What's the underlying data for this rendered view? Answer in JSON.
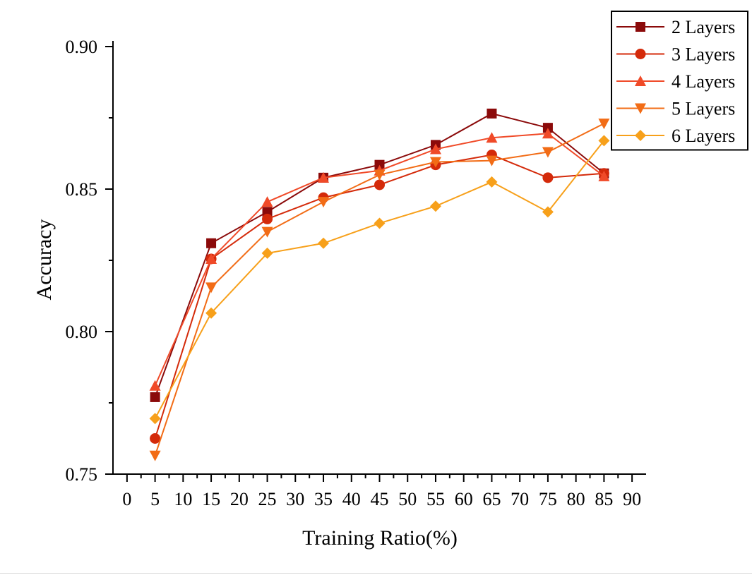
{
  "chart_data": {
    "type": "line",
    "title": "",
    "xlabel": "Training Ratio(%)",
    "ylabel": "Accuracy",
    "xlim": [
      -2.5,
      92.5
    ],
    "ylim": [
      0.75,
      0.9
    ],
    "xticks": [
      0,
      5,
      10,
      15,
      20,
      25,
      30,
      35,
      40,
      45,
      50,
      55,
      60,
      65,
      70,
      75,
      80,
      85,
      90
    ],
    "xtick_labels": [
      "0",
      "5",
      "10",
      "15",
      "20",
      "25",
      "30",
      "35",
      "40",
      "45",
      "50",
      "55",
      "60",
      "65",
      "70",
      "75",
      "80",
      "85",
      "90"
    ],
    "yticks": [
      0.75,
      0.8,
      0.85,
      0.9
    ],
    "ytick_labels": [
      "0.75",
      "0.80",
      "0.85",
      "0.90"
    ],
    "grid": false,
    "legend_position": "top-right",
    "x": [
      5,
      15,
      25,
      35,
      45,
      55,
      65,
      75,
      85
    ],
    "series": [
      {
        "name": "2 Layers",
        "marker": "square",
        "color": "#8b0a0a",
        "values": [
          0.777,
          0.831,
          0.842,
          0.854,
          0.8585,
          0.8655,
          0.8765,
          0.8715,
          0.8555
        ]
      },
      {
        "name": "3 Layers",
        "marker": "circle",
        "color": "#d42a0a",
        "values": [
          0.7625,
          0.8255,
          0.8395,
          0.847,
          0.8515,
          0.8585,
          0.862,
          0.854,
          0.8555
        ]
      },
      {
        "name": "4 Layers",
        "marker": "triangle-up",
        "color": "#f04a28",
        "values": [
          0.781,
          0.8255,
          0.8455,
          0.854,
          0.8565,
          0.864,
          0.868,
          0.8695,
          0.8545
        ]
      },
      {
        "name": "5 Layers",
        "marker": "triangle-down",
        "color": "#f26c16",
        "values": [
          0.7565,
          0.8155,
          0.835,
          0.8455,
          0.855,
          0.8595,
          0.86,
          0.863,
          0.873
        ]
      },
      {
        "name": "6 Layers",
        "marker": "diamond",
        "color": "#f7a01a",
        "values": [
          0.7695,
          0.8065,
          0.8275,
          0.831,
          0.838,
          0.844,
          0.8525,
          0.842,
          0.867
        ]
      }
    ]
  }
}
